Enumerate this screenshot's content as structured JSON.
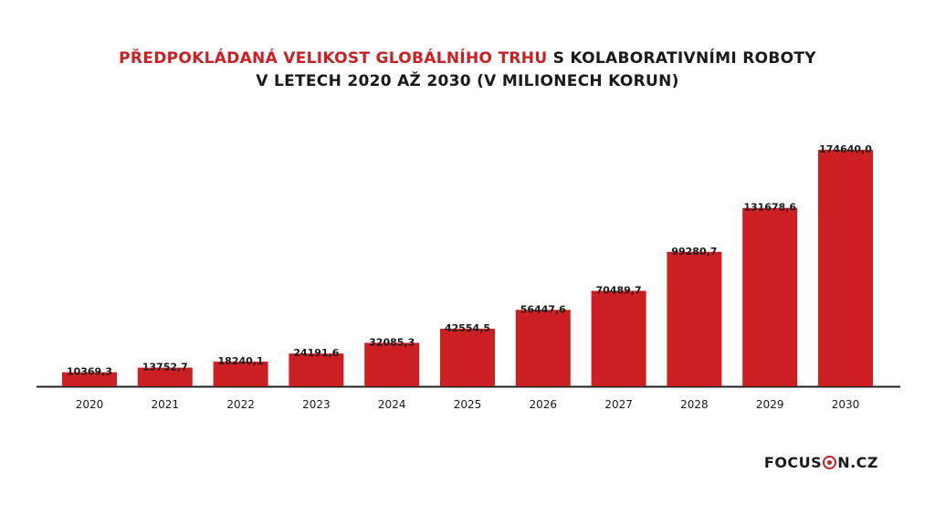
{
  "title": {
    "highlight": "PŘEDPOKLÁDANÁ VELIKOST GLOBÁLNÍHO TRHU",
    "rest_line1": " S KOLABORATIVNÍMI ROBOTY",
    "line2": "V LETECH 2020 AŽ 2030 (V MILIONECH KORUN)"
  },
  "logo": {
    "before": "FOCUS",
    "mark_letter": "O",
    "after": "N.CZ"
  },
  "colors": {
    "bar": "#cc1f24",
    "accent": "#cc1f24",
    "text": "#1a1a1a",
    "axis": "#222222"
  },
  "chart_data": {
    "type": "bar",
    "categories": [
      "2020",
      "2021",
      "2022",
      "2023",
      "2024",
      "2025",
      "2026",
      "2027",
      "2028",
      "2029",
      "2030"
    ],
    "values": [
      10369.3,
      13752.7,
      18240.1,
      24191.6,
      32085.3,
      42554.5,
      56447.6,
      70489.7,
      99280.7,
      131678.6,
      174640.0
    ],
    "labels": [
      "10369,3",
      "13752,7",
      "18240,1",
      "24191,6",
      "32085,3",
      "42554,5",
      "56447,6",
      "70489,7",
      "99280,7",
      "131678,6",
      "174640,0"
    ],
    "ylim": [
      0,
      174640.0
    ],
    "grid": false,
    "legend": "none"
  }
}
